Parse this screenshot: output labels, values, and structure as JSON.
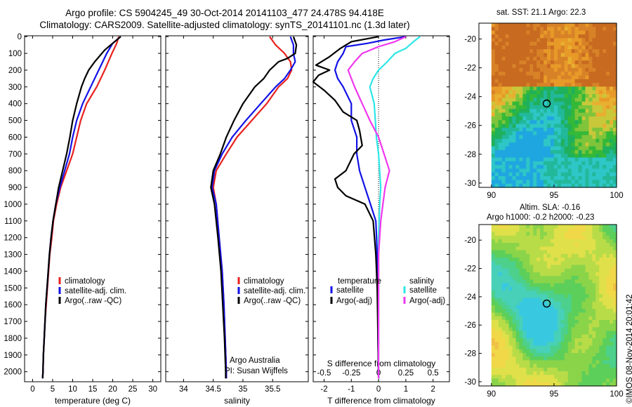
{
  "figure": {
    "title_line1": "Argo profile: CS 5904245_49 30-Oct-2014 20141103_477 24.478S 94.418E",
    "title_line2": "Climatology: CARS2009. Satellite-adjusted climatology: synTS_20141101.nc (1.3d later)",
    "stamp": "©IMOS 08-Nov-2014 20:01:42",
    "credit_line1": "Argo Australia",
    "credit_line2": "PI: Susan Wijffels"
  },
  "colors": {
    "climatology": "#e8211e",
    "satellite": "#1212e6",
    "argo": "#000000",
    "sal_satellite": "#2ee6e6",
    "sal_argo": "#f037ee"
  },
  "chart_data": [
    {
      "type": "line",
      "name": "temperature",
      "xlabel": "temperature (deg C)",
      "xlim": [
        -2,
        32
      ],
      "ylim": [
        2060,
        -5
      ],
      "xticks": [
        0,
        5,
        10,
        15,
        20,
        25,
        30
      ],
      "yticks": [
        0,
        100,
        200,
        300,
        400,
        500,
        600,
        700,
        800,
        900,
        1000,
        1100,
        1200,
        1300,
        1400,
        1500,
        1600,
        1700,
        1800,
        1900,
        2000
      ],
      "legend": [
        "climatology",
        "satellite-adj. clim.",
        "Argo(..raw -QC)"
      ],
      "series": [
        {
          "name": "climatology",
          "color": "#e8211e",
          "points": [
            [
              21.5,
              0
            ],
            [
              21,
              40
            ],
            [
              19.8,
              100
            ],
            [
              18,
              200
            ],
            [
              16,
              300
            ],
            [
              13.5,
              400
            ],
            [
              12,
              500
            ],
            [
              11,
              600
            ],
            [
              10,
              700
            ],
            [
              8.5,
              800
            ],
            [
              7,
              900
            ],
            [
              6,
              1000
            ],
            [
              5.2,
              1100
            ],
            [
              4.8,
              1200
            ],
            [
              4.3,
              1300
            ],
            [
              4,
              1400
            ],
            [
              3.7,
              1500
            ],
            [
              3.4,
              1600
            ],
            [
              3.1,
              1700
            ],
            [
              2.9,
              1800
            ],
            [
              2.7,
              1900
            ],
            [
              2.6,
              2000
            ],
            [
              2.5,
              2040
            ]
          ]
        },
        {
          "name": "satellite-adj. clim.",
          "color": "#1212e6",
          "points": [
            [
              22,
              0
            ],
            [
              20,
              40
            ],
            [
              18.5,
              100
            ],
            [
              16.5,
              200
            ],
            [
              14.5,
              300
            ],
            [
              12.5,
              400
            ],
            [
              11,
              500
            ],
            [
              10,
              600
            ],
            [
              9.2,
              700
            ],
            [
              8,
              800
            ],
            [
              6.8,
              900
            ],
            [
              5.8,
              1000
            ],
            [
              5.1,
              1100
            ],
            [
              4.6,
              1200
            ],
            [
              4.2,
              1300
            ],
            [
              3.9,
              1400
            ],
            [
              3.6,
              1500
            ],
            [
              3.3,
              1600
            ],
            [
              3.1,
              1700
            ],
            [
              2.9,
              1800
            ],
            [
              2.7,
              1900
            ],
            [
              2.6,
              2000
            ],
            [
              2.5,
              2040
            ]
          ]
        },
        {
          "name": "Argo(..raw -QC)",
          "color": "#000000",
          "points": [
            [
              22,
              0
            ],
            [
              20,
              40
            ],
            [
              18,
              80
            ],
            [
              15.5,
              150
            ],
            [
              14,
              200
            ],
            [
              13,
              250
            ],
            [
              12.2,
              300
            ],
            [
              11,
              400
            ],
            [
              10,
              500
            ],
            [
              9.3,
              600
            ],
            [
              8.5,
              700
            ],
            [
              7.5,
              800
            ],
            [
              6.5,
              900
            ],
            [
              5.8,
              1000
            ],
            [
              5.1,
              1100
            ],
            [
              4.6,
              1200
            ],
            [
              4.2,
              1300
            ],
            [
              3.9,
              1400
            ],
            [
              3.6,
              1500
            ],
            [
              3.3,
              1600
            ],
            [
              3.1,
              1700
            ],
            [
              2.9,
              1800
            ],
            [
              2.7,
              1900
            ],
            [
              2.6,
              2000
            ],
            [
              2.5,
              2040
            ]
          ]
        }
      ]
    },
    {
      "type": "line",
      "name": "salinity",
      "xlabel": "salinity",
      "xlim": [
        33.7,
        36.1
      ],
      "ylim": [
        2060,
        -5
      ],
      "xticks": [
        34,
        34.5,
        35,
        35.5
      ],
      "xticklabels": [
        "34",
        "34.5",
        "35",
        "35.5"
      ],
      "legend": [
        "climatology",
        "satellite-adj. clim.",
        "Argo(..raw -QC)"
      ],
      "series": [
        {
          "name": "climatology",
          "color": "#e8211e",
          "points": [
            [
              35.45,
              0
            ],
            [
              35.55,
              50
            ],
            [
              35.7,
              100
            ],
            [
              35.8,
              150
            ],
            [
              35.82,
              200
            ],
            [
              35.75,
              250
            ],
            [
              35.6,
              300
            ],
            [
              35.4,
              400
            ],
            [
              35.15,
              500
            ],
            [
              34.9,
              600
            ],
            [
              34.72,
              700
            ],
            [
              34.55,
              800
            ],
            [
              34.5,
              900
            ],
            [
              34.55,
              1000
            ],
            [
              34.6,
              1200
            ],
            [
              34.65,
              1400
            ],
            [
              34.68,
              1600
            ],
            [
              34.7,
              1800
            ],
            [
              34.72,
              2000
            ],
            [
              34.72,
              2040
            ]
          ]
        },
        {
          "name": "satellite-adj. clim.",
          "color": "#1212e6",
          "points": [
            [
              35.8,
              0
            ],
            [
              35.85,
              50
            ],
            [
              35.85,
              100
            ],
            [
              35.88,
              150
            ],
            [
              35.8,
              200
            ],
            [
              35.7,
              250
            ],
            [
              35.55,
              300
            ],
            [
              35.3,
              400
            ],
            [
              35.05,
              500
            ],
            [
              34.82,
              600
            ],
            [
              34.65,
              700
            ],
            [
              34.52,
              800
            ],
            [
              34.48,
              900
            ],
            [
              34.55,
              1000
            ],
            [
              34.6,
              1200
            ],
            [
              34.65,
              1400
            ],
            [
              34.68,
              1600
            ],
            [
              34.7,
              1800
            ],
            [
              34.72,
              2000
            ],
            [
              34.72,
              2040
            ]
          ]
        },
        {
          "name": "Argo(..raw -QC)",
          "color": "#000000",
          "points": [
            [
              35.85,
              0
            ],
            [
              35.9,
              50
            ],
            [
              35.88,
              100
            ],
            [
              35.75,
              130
            ],
            [
              35.6,
              150
            ],
            [
              35.45,
              200
            ],
            [
              35.35,
              250
            ],
            [
              35.2,
              300
            ],
            [
              35.0,
              400
            ],
            [
              34.85,
              500
            ],
            [
              34.72,
              600
            ],
            [
              34.62,
              700
            ],
            [
              34.5,
              800
            ],
            [
              34.46,
              900
            ],
            [
              34.52,
              1000
            ],
            [
              34.58,
              1200
            ],
            [
              34.63,
              1400
            ],
            [
              34.66,
              1600
            ],
            [
              34.69,
              1800
            ],
            [
              34.71,
              2000
            ],
            [
              34.71,
              2040
            ]
          ]
        }
      ]
    },
    {
      "type": "line",
      "name": "difference",
      "xlabel": "T difference from climatology",
      "xlabel2": "S difference from climatology",
      "xlim": [
        -2.4,
        2.6
      ],
      "ylim": [
        2060,
        -5
      ],
      "xticks": [
        -2,
        -1,
        0,
        1,
        2
      ],
      "xticklabels": [
        "-2",
        "-1",
        "0",
        "1",
        "2"
      ],
      "xticks2": [
        -0.5,
        -0.25,
        0,
        0.25,
        0.5
      ],
      "xticklabels2": [
        "-0.5",
        "-0.25",
        "0",
        "0.25",
        "0.5"
      ],
      "legend_title_t": "temperature",
      "legend_title_s": "salinity",
      "legend": [
        "satellite",
        "Argo(-adj)",
        "satellite",
        "Argo(-adj)"
      ],
      "series": [
        {
          "name": "T satellite",
          "color": "#1212e6",
          "points": [
            [
              1,
              0
            ],
            [
              0.2,
              20
            ],
            [
              -0.4,
              40
            ],
            [
              -1.2,
              60
            ],
            [
              -1.3,
              100
            ],
            [
              -1.5,
              150
            ],
            [
              -1.6,
              200
            ],
            [
              -1.5,
              250
            ],
            [
              -1.3,
              300
            ],
            [
              -1.0,
              400
            ],
            [
              -1.0,
              500
            ],
            [
              -0.8,
              600
            ],
            [
              -0.8,
              700
            ],
            [
              -0.7,
              800
            ],
            [
              -0.5,
              900
            ],
            [
              -0.3,
              1000
            ],
            [
              -0.1,
              1100
            ],
            [
              -0.05,
              1300
            ],
            [
              -0.03,
              1500
            ],
            [
              -0.02,
              1800
            ],
            [
              0,
              2040
            ]
          ]
        },
        {
          "name": "T Argo(-adj)",
          "color": "#000000",
          "points": [
            [
              0,
              0
            ],
            [
              -1.0,
              30
            ],
            [
              -1.4,
              70
            ],
            [
              -1.8,
              120
            ],
            [
              -2.3,
              170
            ],
            [
              -1.8,
              200
            ],
            [
              -2.2,
              230
            ],
            [
              -2.4,
              270
            ],
            [
              -2.0,
              320
            ],
            [
              -1.6,
              380
            ],
            [
              -1.3,
              450
            ],
            [
              -0.8,
              500
            ],
            [
              -0.7,
              560
            ],
            [
              -0.6,
              650
            ],
            [
              -0.9,
              700
            ],
            [
              -1.2,
              800
            ],
            [
              -1.6,
              850
            ],
            [
              -1.5,
              900
            ],
            [
              -1.2,
              950
            ],
            [
              -0.5,
              1000
            ],
            [
              -0.2,
              1100
            ],
            [
              -0.1,
              1300
            ],
            [
              -0.05,
              1500
            ],
            [
              -0.02,
              1800
            ],
            [
              0,
              2040
            ]
          ]
        },
        {
          "name": "S satellite",
          "color": "#2ee6e6",
          "points": [
            [
              0.38,
              0
            ],
            [
              0.32,
              30
            ],
            [
              0.25,
              70
            ],
            [
              0.15,
              100
            ],
            [
              0.08,
              150
            ],
            [
              0.0,
              200
            ],
            [
              -0.05,
              250
            ],
            [
              -0.08,
              300
            ],
            [
              -0.06,
              350
            ],
            [
              -0.04,
              400
            ],
            [
              -0.02,
              600
            ],
            [
              0.0,
              700
            ],
            [
              0.02,
              900
            ],
            [
              0.01,
              1000
            ],
            [
              0.0,
              1200
            ],
            [
              0.0,
              1500
            ],
            [
              0.0,
              1800
            ],
            [
              0.0,
              2040
            ]
          ]
        },
        {
          "name": "S Argo(-adj)",
          "color": "#f037ee",
          "points": [
            [
              0.25,
              0
            ],
            [
              0.15,
              30
            ],
            [
              0.0,
              60
            ],
            [
              -0.15,
              100
            ],
            [
              -0.22,
              150
            ],
            [
              -0.28,
              200
            ],
            [
              -0.25,
              250
            ],
            [
              -0.22,
              300
            ],
            [
              -0.15,
              400
            ],
            [
              -0.08,
              500
            ],
            [
              0.0,
              600
            ],
            [
              0.05,
              700
            ],
            [
              0.1,
              800
            ],
            [
              0.06,
              900
            ],
            [
              0.04,
              1000
            ],
            [
              0.02,
              1100
            ],
            [
              0.0,
              1300
            ],
            [
              0.0,
              1600
            ],
            [
              0.0,
              2040
            ]
          ]
        }
      ]
    },
    {
      "type": "heatmap",
      "name": "sst map",
      "title": "sat. SST: 21.1  Argo: 22.3",
      "xlim": [
        89,
        100
      ],
      "ylim": [
        -30.3,
        -18.9
      ],
      "xticks": [
        90,
        95,
        100
      ],
      "yticks": [
        -20,
        -22,
        -24,
        -26,
        -28,
        -30
      ],
      "marker": [
        94.418,
        -24.478
      ]
    },
    {
      "type": "heatmap",
      "name": "sla map",
      "title_line1": "Altim. SLA: -0.16",
      "title_line2": "Argo h1000: -0.2  h2000: -0.23",
      "xlim": [
        89,
        100
      ],
      "ylim": [
        -30.3,
        -18.9
      ],
      "xticks": [
        90,
        95,
        100
      ],
      "yticks": [
        -20,
        -22,
        -24,
        -26,
        -28,
        -30
      ],
      "marker": [
        94.418,
        -24.478
      ]
    }
  ]
}
